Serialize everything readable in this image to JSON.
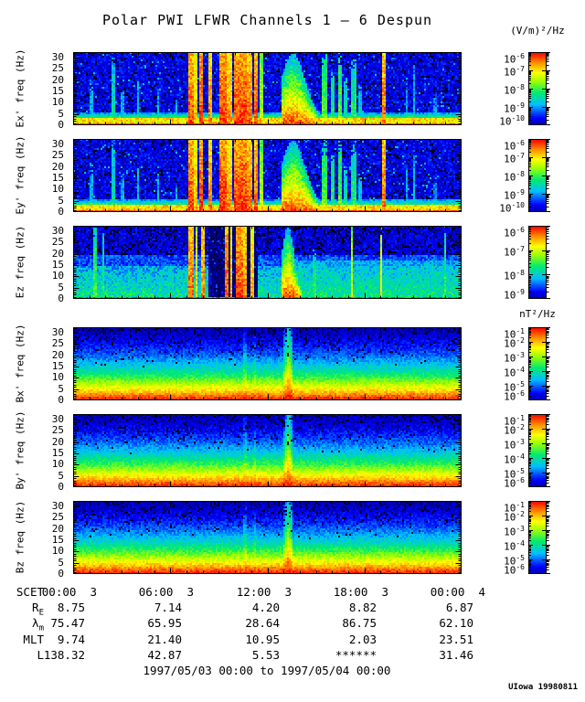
{
  "title": "Polar PWI LFWR Channels 1 — 6 Despun",
  "date_range": "1997/05/03 00:00 to 1997/05/04 00:00",
  "credit": "UIowa 19980811",
  "units": {
    "electric": "(V/m)²/Hz",
    "magnetic": "nT²/Hz"
  },
  "chart_data": {
    "type": "heatmap",
    "title": "Polar PWI LFWR Channels 1 — 6 Despun",
    "cb_base": "10",
    "time_axis": {
      "label": "SCET",
      "start": "1997/05/03 00:00",
      "end": "1997/05/04 00:00",
      "tick_labels": [
        "00:00  3",
        "06:00  3",
        "12:00  3",
        "18:00  3",
        "00:00  4"
      ]
    },
    "freq_axis": {
      "ticks": [
        0,
        5,
        10,
        15,
        20,
        25,
        30
      ],
      "max": 32.5,
      "unit": "Hz"
    },
    "panels": [
      {
        "id": "ex",
        "channel": "Ex'",
        "ylabel": "Ex' freq (Hz)",
        "unit": "(V/m)²/Hz",
        "profile": "E",
        "seed": 101,
        "cb_exponents": [
          {
            "exp": "-6"
          },
          {
            "exp": "-7"
          },
          {
            "exp": "-8"
          },
          {
            "exp": "-9"
          },
          {
            "exp": "-10"
          }
        ],
        "clim": [
          "1e-10",
          "1e-6"
        ]
      },
      {
        "id": "ey",
        "channel": "Ey'",
        "ylabel": "Ey' freq (Hz)",
        "unit": "(V/m)²/Hz",
        "profile": "E",
        "seed": 202,
        "cb_exponents": [
          {
            "exp": "-6"
          },
          {
            "exp": "-7"
          },
          {
            "exp": "-8"
          },
          {
            "exp": "-9"
          },
          {
            "exp": "-10"
          }
        ],
        "clim": [
          "1e-10",
          "1e-6"
        ]
      },
      {
        "id": "ez",
        "channel": "Ez",
        "ylabel": "Ez freq (Hz)",
        "unit": "(V/m)²/Hz",
        "profile": "Ez",
        "seed": 303,
        "cb_exponents": [
          {
            "exp": "-6"
          },
          {
            "exp": "-7"
          },
          {
            "exp": "-8"
          },
          {
            "exp": "-9"
          }
        ],
        "clim": [
          "1e-9",
          "1e-6"
        ]
      },
      {
        "id": "bx",
        "channel": "Bx'",
        "ylabel": "Bx' freq (Hz)",
        "unit": "nT²/Hz",
        "profile": "B",
        "seed": 404,
        "cb_exponents": [
          {
            "exp": "-1"
          },
          {
            "exp": "-2"
          },
          {
            "exp": "-3"
          },
          {
            "exp": "-4"
          },
          {
            "exp": "-5"
          },
          {
            "exp": "-6"
          }
        ],
        "clim": [
          "1e-6",
          "1e-1"
        ]
      },
      {
        "id": "by",
        "channel": "By'",
        "ylabel": "By' freq (Hz)",
        "unit": "nT²/Hz",
        "profile": "B",
        "seed": 505,
        "cb_exponents": [
          {
            "exp": "-1"
          },
          {
            "exp": "-2"
          },
          {
            "exp": "-3"
          },
          {
            "exp": "-4"
          },
          {
            "exp": "-5"
          },
          {
            "exp": "-6"
          }
        ],
        "clim": [
          "1e-6",
          "1e-1"
        ]
      },
      {
        "id": "bz",
        "channel": "Bz",
        "ylabel": "Bz freq (Hz)",
        "unit": "nT²/Hz",
        "profile": "B",
        "seed": 606,
        "cb_exponents": [
          {
            "exp": "-1"
          },
          {
            "exp": "-2"
          },
          {
            "exp": "-3"
          },
          {
            "exp": "-4"
          },
          {
            "exp": "-5"
          },
          {
            "exp": "-6"
          }
        ],
        "clim": [
          "1e-6",
          "1e-1"
        ]
      }
    ],
    "events": {
      "E": {
        "streaks": [
          {
            "t": 0.045,
            "w": 0.003,
            "h": 0.55,
            "v": 0.42
          },
          {
            "t": 0.1,
            "w": 0.004,
            "h": 0.97,
            "v": 0.5
          },
          {
            "t": 0.125,
            "w": 0.003,
            "h": 0.5,
            "v": 0.4
          },
          {
            "t": 0.165,
            "w": 0.004,
            "h": 0.6,
            "v": 0.45
          },
          {
            "t": 0.215,
            "w": 0.003,
            "h": 0.5,
            "v": 0.42
          },
          {
            "t": 0.265,
            "w": 0.003,
            "h": 0.35,
            "v": 0.4
          },
          {
            "t": 0.645,
            "w": 0.008,
            "h": 0.9,
            "v": 0.62
          },
          {
            "t": 0.665,
            "w": 0.006,
            "h": 0.75,
            "v": 0.55
          },
          {
            "t": 0.685,
            "w": 0.005,
            "h": 0.9,
            "v": 0.62
          },
          {
            "t": 0.7,
            "w": 0.004,
            "h": 0.6,
            "v": 0.5
          },
          {
            "t": 0.72,
            "w": 0.005,
            "h": 0.85,
            "v": 0.56
          },
          {
            "t": 0.737,
            "w": 0.003,
            "h": 0.5,
            "v": 0.45
          },
          {
            "t": 0.855,
            "w": 0.003,
            "h": 0.6,
            "v": 0.42
          },
          {
            "t": 0.875,
            "w": 0.003,
            "h": 0.8,
            "v": 0.46
          },
          {
            "t": 0.93,
            "w": 0.003,
            "h": 0.4,
            "v": 0.38
          }
        ],
        "bursts": [
          {
            "t": 0.3,
            "w": 0.007,
            "v": 0.95
          },
          {
            "t": 0.313,
            "w": 0.004,
            "v": 0.85
          },
          {
            "t": 0.328,
            "w": 0.006,
            "v": 0.96
          },
          {
            "t": 0.352,
            "w": 0.005,
            "v": 0.9
          },
          {
            "t": 0.385,
            "w": 0.009,
            "v": 0.97
          },
          {
            "t": 0.4,
            "w": 0.005,
            "v": 0.88
          },
          {
            "t": 0.417,
            "w": 0.007,
            "v": 0.96
          },
          {
            "t": 0.434,
            "w": 0.01,
            "v": 0.97
          },
          {
            "t": 0.452,
            "w": 0.006,
            "v": 0.92
          },
          {
            "t": 0.468,
            "w": 0.005,
            "v": 0.94
          },
          {
            "t": 0.483,
            "w": 0.004,
            "v": 0.7
          },
          {
            "t": 0.797,
            "w": 0.004,
            "v": 0.92
          }
        ],
        "blob": {
          "t0": 0.533,
          "t1": 0.628
        }
      },
      "Ez": {
        "streaks": [
          {
            "t": 0.055,
            "w": 0.004,
            "h": 1,
            "v": 0.6
          },
          {
            "t": 0.075,
            "w": 0.003,
            "h": 1,
            "v": 0.55
          },
          {
            "t": 0.62,
            "w": 0.004,
            "h": 0.6,
            "v": 0.55
          },
          {
            "t": 0.715,
            "w": 0.003,
            "h": 1,
            "v": 0.75
          },
          {
            "t": 0.79,
            "w": 0.003,
            "h": 1,
            "v": 0.78
          },
          {
            "t": 0.955,
            "w": 0.003,
            "h": 1,
            "v": 0.6
          }
        ],
        "bursts": [
          {
            "t": 0.3,
            "w": 0.006,
            "v": 0.92
          },
          {
            "t": 0.315,
            "w": 0.004,
            "v": 0.82
          },
          {
            "t": 0.33,
            "w": 0.005,
            "v": 0.9
          },
          {
            "t": 0.392,
            "w": 0.006,
            "v": 0.95
          },
          {
            "t": 0.405,
            "w": 0.004,
            "v": 0.85
          },
          {
            "t": 0.425,
            "w": 0.008,
            "v": 0.96
          },
          {
            "t": 0.44,
            "w": 0.005,
            "v": 0.9
          },
          {
            "t": 0.458,
            "w": 0.004,
            "v": 0.85
          }
        ],
        "gap": {
          "t0": 0.345,
          "t1": 0.475
        },
        "blob": {
          "t0": 0.535,
          "t1": 0.585
        }
      },
      "B": {
        "spikes": [
          {
            "t": 0.552,
            "w": 0.012,
            "boost": 0.55
          },
          {
            "t": 0.44,
            "w": 0.005,
            "boost": 0.2
          },
          {
            "t": 0.465,
            "w": 0.004,
            "boost": 0.12
          }
        ]
      }
    },
    "ephemeris": {
      "rows": [
        {
          "label": "SCET",
          "sub": "",
          "values": [
            "00:00  3",
            "06:00  3",
            "12:00  3",
            "18:00  3",
            "00:00  4"
          ]
        },
        {
          "label": "R",
          "sub": "E",
          "values": [
            "8.75",
            "7.14",
            "4.20",
            "8.82",
            "6.87"
          ]
        },
        {
          "label": "λ",
          "sub": "m",
          "values": [
            "75.47",
            "65.95",
            "28.64",
            "86.75",
            "62.10"
          ]
        },
        {
          "label": "MLT",
          "sub": "",
          "values": [
            "9.74",
            "21.40",
            "10.95",
            "2.03",
            "23.51"
          ]
        },
        {
          "label": "L",
          "sub": "",
          "values": [
            "138.32",
            "42.87",
            "5.53",
            "******",
            "31.46"
          ]
        }
      ]
    }
  }
}
